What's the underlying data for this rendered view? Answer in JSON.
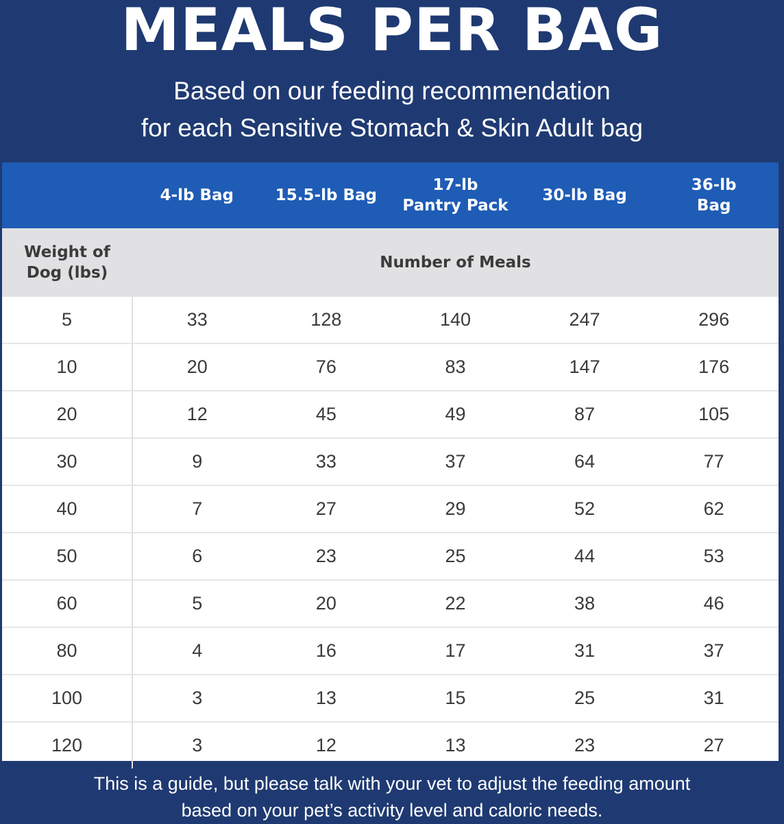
{
  "title": "MEALS PER BAG",
  "subtitle": [
    "Based on our feeding recommendation",
    "for each Sensitive Stomach & Skin Adult bag"
  ],
  "table": {
    "bag_headers": [
      [
        "4-lb Bag"
      ],
      [
        "15.5-lb Bag"
      ],
      [
        "17-lb",
        "Pantry Pack"
      ],
      [
        "30-lb Bag"
      ],
      [
        "36-lb",
        "Bag"
      ]
    ],
    "weight_header": [
      "Weight of",
      "Dog (lbs)"
    ],
    "meals_header": "Number of Meals",
    "rows": [
      [
        "5",
        "33",
        "128",
        "140",
        "247",
        "296"
      ],
      [
        "10",
        "20",
        "76",
        "83",
        "147",
        "176"
      ],
      [
        "20",
        "12",
        "45",
        "49",
        "87",
        "105"
      ],
      [
        "30",
        "9",
        "33",
        "37",
        "64",
        "77"
      ],
      [
        "40",
        "7",
        "27",
        "29",
        "52",
        "62"
      ],
      [
        "50",
        "6",
        "23",
        "25",
        "44",
        "53"
      ],
      [
        "60",
        "5",
        "20",
        "22",
        "38",
        "46"
      ],
      [
        "80",
        "4",
        "16",
        "17",
        "31",
        "37"
      ],
      [
        "100",
        "3",
        "13",
        "15",
        "25",
        "31"
      ],
      [
        "120",
        "3",
        "12",
        "13",
        "23",
        "27"
      ]
    ]
  },
  "footer": [
    "This is a guide, but please talk with your vet to adjust the feeding amount",
    "based on your pet’s activity level and caloric needs."
  ],
  "colors": {
    "background": "#1f3a72",
    "header_blue": "#1e5cb6",
    "subheader_gray": "#e1e1e3",
    "text_dark": "#3a3a3a"
  }
}
